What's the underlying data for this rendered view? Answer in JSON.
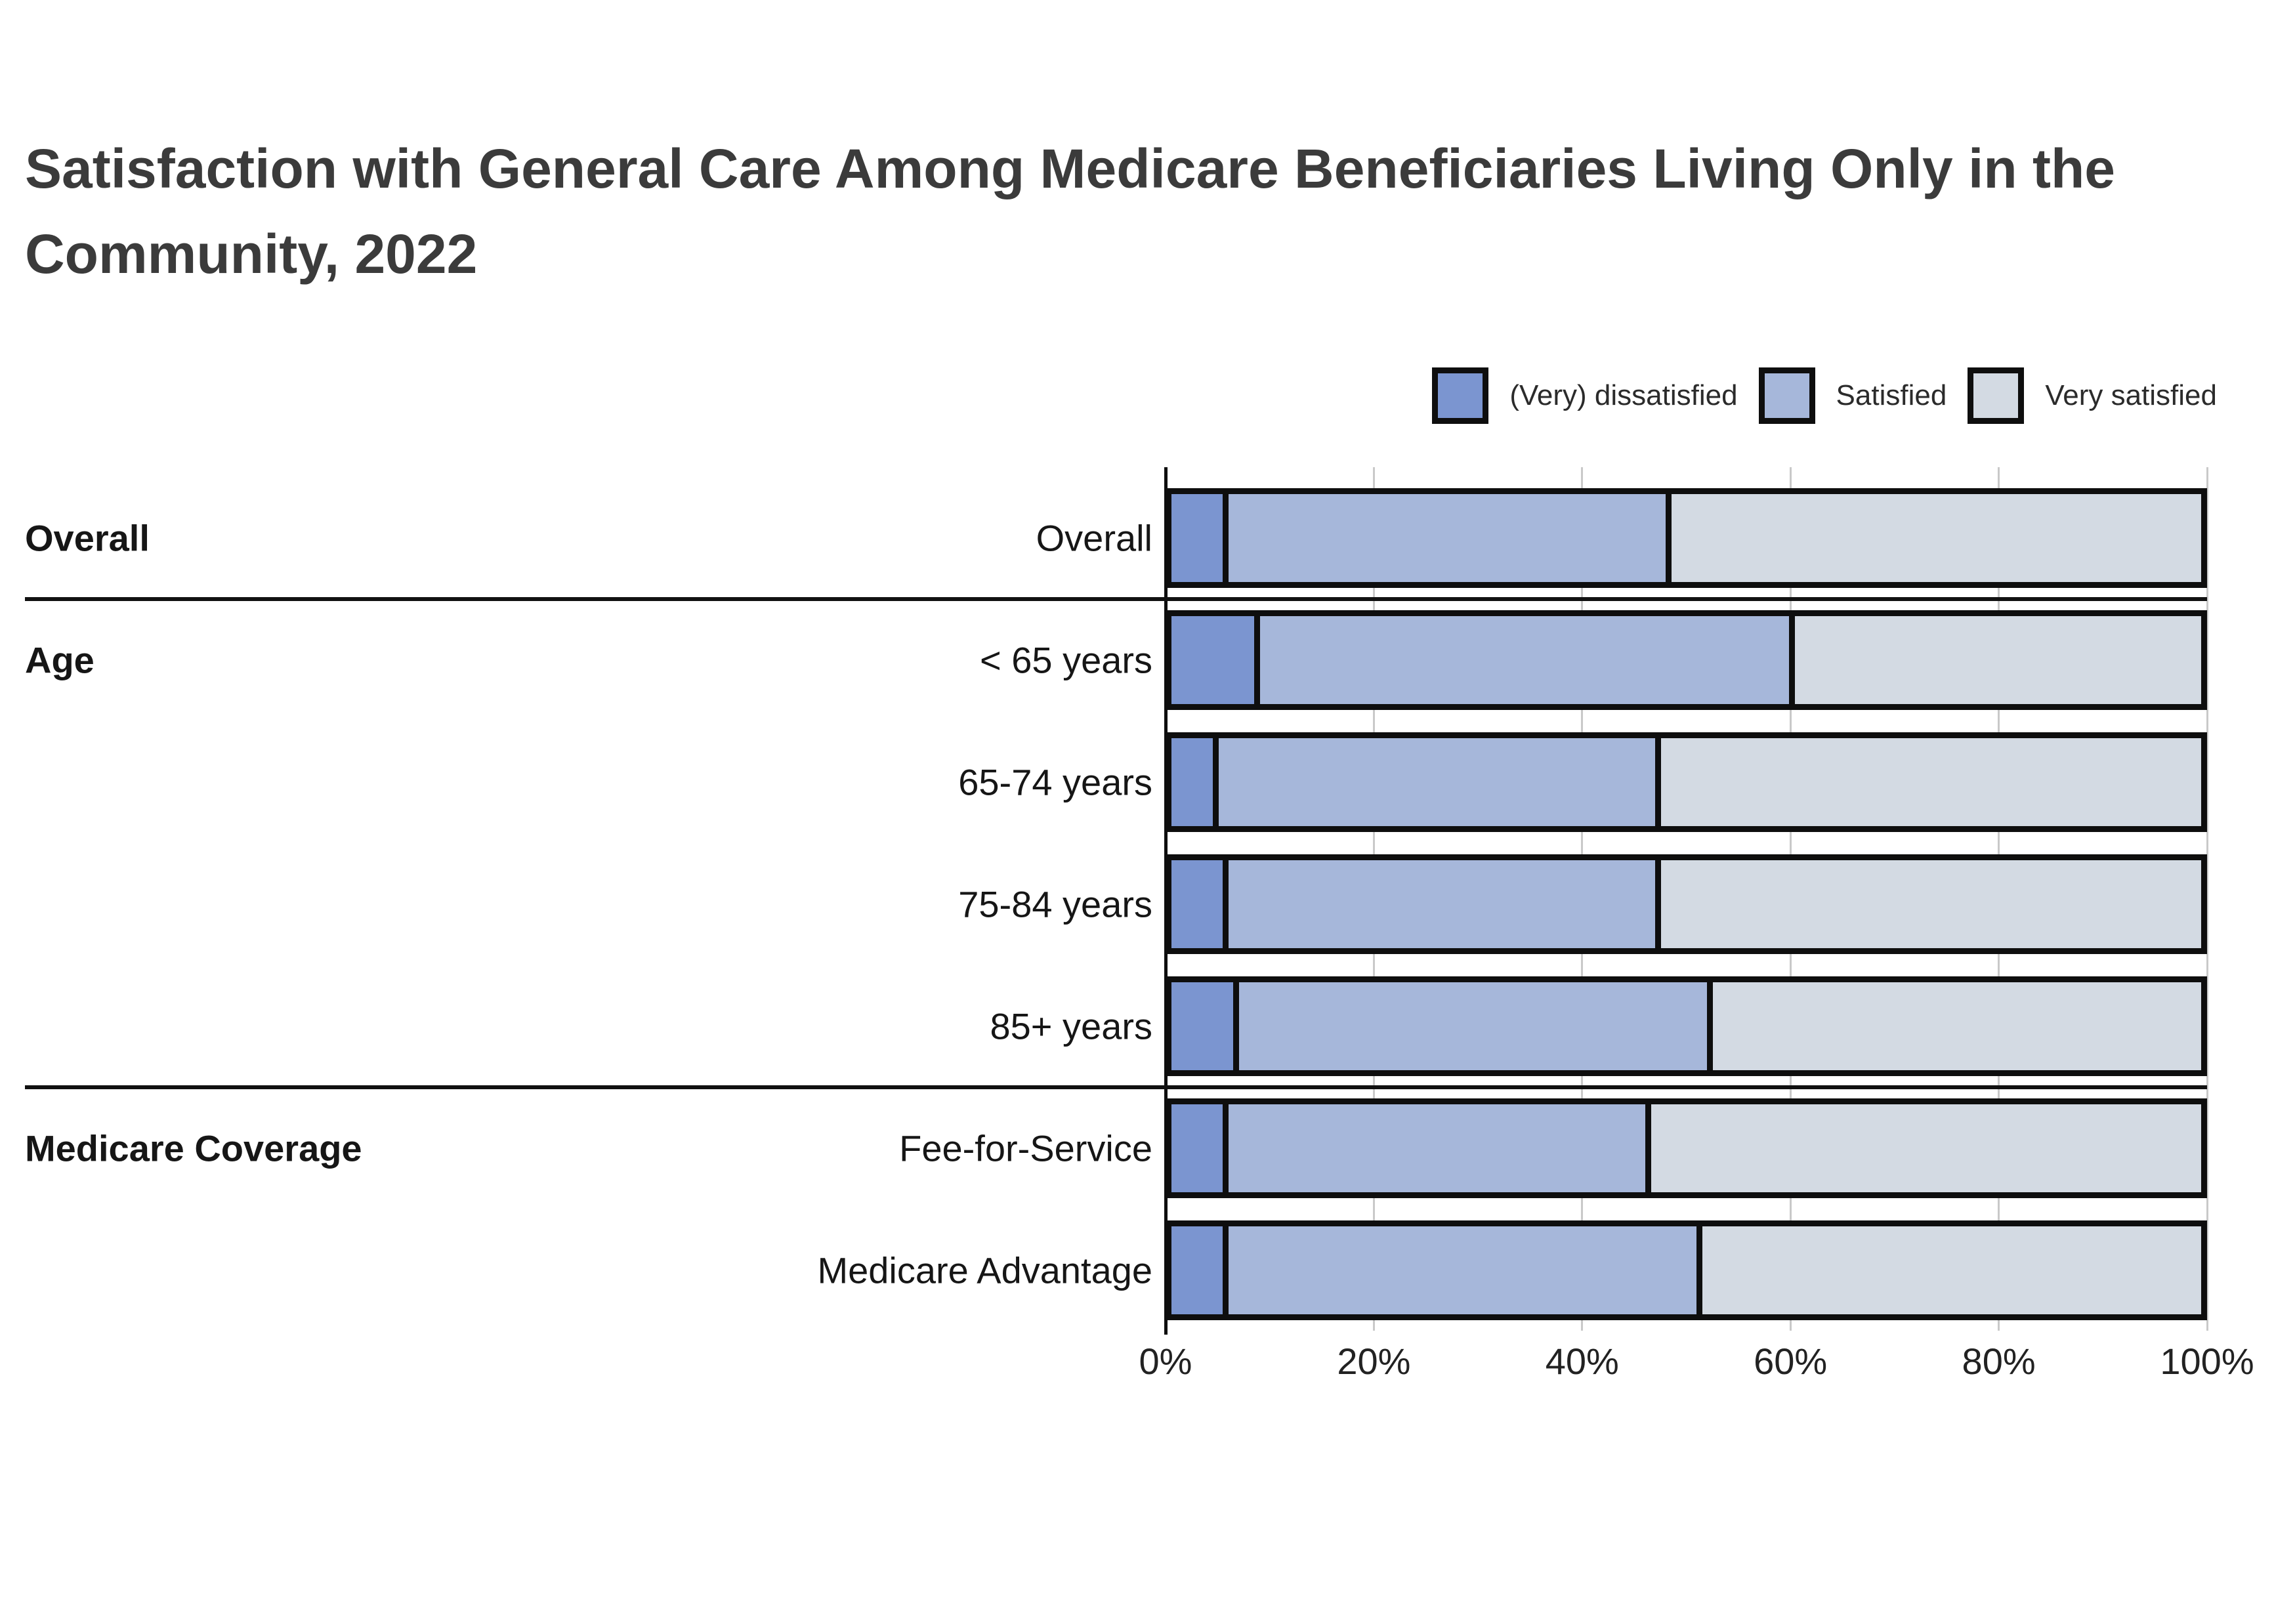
{
  "title": "Satisfaction with General Care Among Medicare Beneficiaries Living Only in the Community, 2022",
  "legend": [
    {
      "label": "(Very) dissatisfied",
      "color": "#7b95d0"
    },
    {
      "label": "Satisfied",
      "color": "#a6b7da"
    },
    {
      "label": "Very satisfied",
      "color": "#d3dae3"
    }
  ],
  "chart_data": {
    "type": "bar",
    "stacked": true,
    "orientation": "horizontal",
    "title": "Satisfaction with General Care Among Medicare Beneficiaries Living Only in the Community, 2022",
    "categories": [
      "Overall",
      "< 65 years",
      "65-74 years",
      "75-84 years",
      "85+ years",
      "Fee-for-Service",
      "Medicare Advantage"
    ],
    "groups": [
      {
        "label": "Overall",
        "rows": [
          "Overall"
        ]
      },
      {
        "label": "Age",
        "rows": [
          "< 65 years",
          "65-74 years",
          "75-84 years",
          "85+ years"
        ]
      },
      {
        "label": "Medicare Coverage",
        "rows": [
          "Fee-for-Service",
          "Medicare Advantage"
        ]
      }
    ],
    "series": [
      {
        "name": "(Very) dissatisfied",
        "values": [
          5,
          8,
          4,
          5,
          6,
          5,
          5
        ]
      },
      {
        "name": "Satisfied",
        "values": [
          43,
          52,
          43,
          42,
          46,
          41,
          46
        ]
      },
      {
        "name": "Very satisfied",
        "values": [
          52,
          40,
          53,
          53,
          48,
          54,
          49
        ]
      }
    ],
    "x_ticks": [
      "0%",
      "20%",
      "40%",
      "60%",
      "80%",
      "100%"
    ],
    "xlim": [
      0,
      100
    ],
    "xlabel": "",
    "ylabel": "",
    "grid": true,
    "legend_position": "top-right"
  }
}
